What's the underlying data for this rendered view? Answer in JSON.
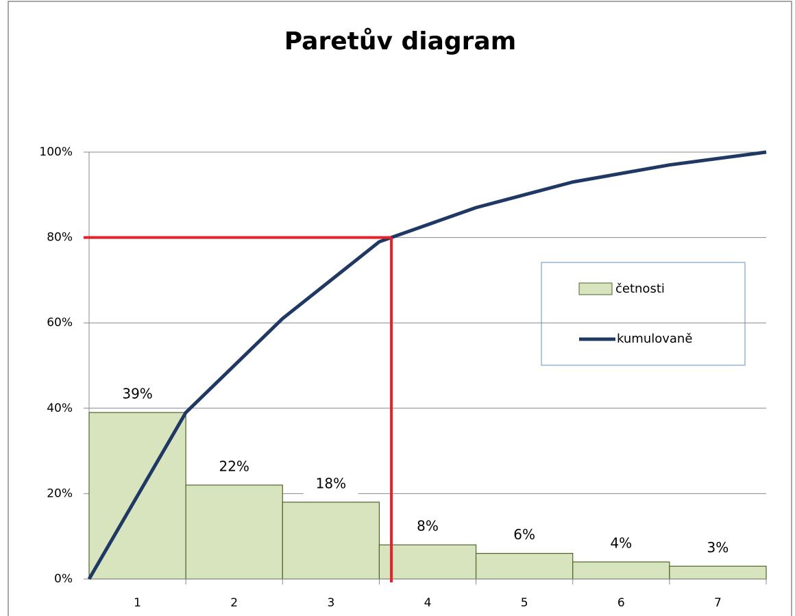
{
  "chart_data": {
    "type": "pareto",
    "title": "Paretův diagram",
    "categories": [
      "1",
      "2",
      "3",
      "4",
      "5",
      "6",
      "7"
    ],
    "series": [
      {
        "name": "četnosti",
        "type": "bar",
        "color": "#d7e4bd",
        "edge_color": "#4f6228",
        "values": [
          39,
          22,
          18,
          8,
          6,
          4,
          3
        ],
        "value_labels": [
          "39%",
          "22%",
          "18%",
          "8%",
          "6%",
          "4%",
          "3%"
        ]
      },
      {
        "name": "kumulovaně",
        "type": "line",
        "color": "#1f3864",
        "x": [
          0,
          1,
          2,
          3,
          4,
          5,
          6,
          7
        ],
        "values": [
          0,
          39,
          61,
          79,
          87,
          93,
          97,
          100
        ]
      }
    ],
    "reference": {
      "x": 3.125,
      "y": 80,
      "color": "#e8202a"
    },
    "ylim": [
      0,
      100
    ],
    "yticks": [
      {
        "value": 0,
        "label": "0%"
      },
      {
        "value": 20,
        "label": "20%"
      },
      {
        "value": 40,
        "label": "40%"
      },
      {
        "value": 60,
        "label": "60%"
      },
      {
        "value": 80,
        "label": "80%"
      },
      {
        "value": 100,
        "label": "100%"
      }
    ],
    "grid": true,
    "legend": "right"
  }
}
